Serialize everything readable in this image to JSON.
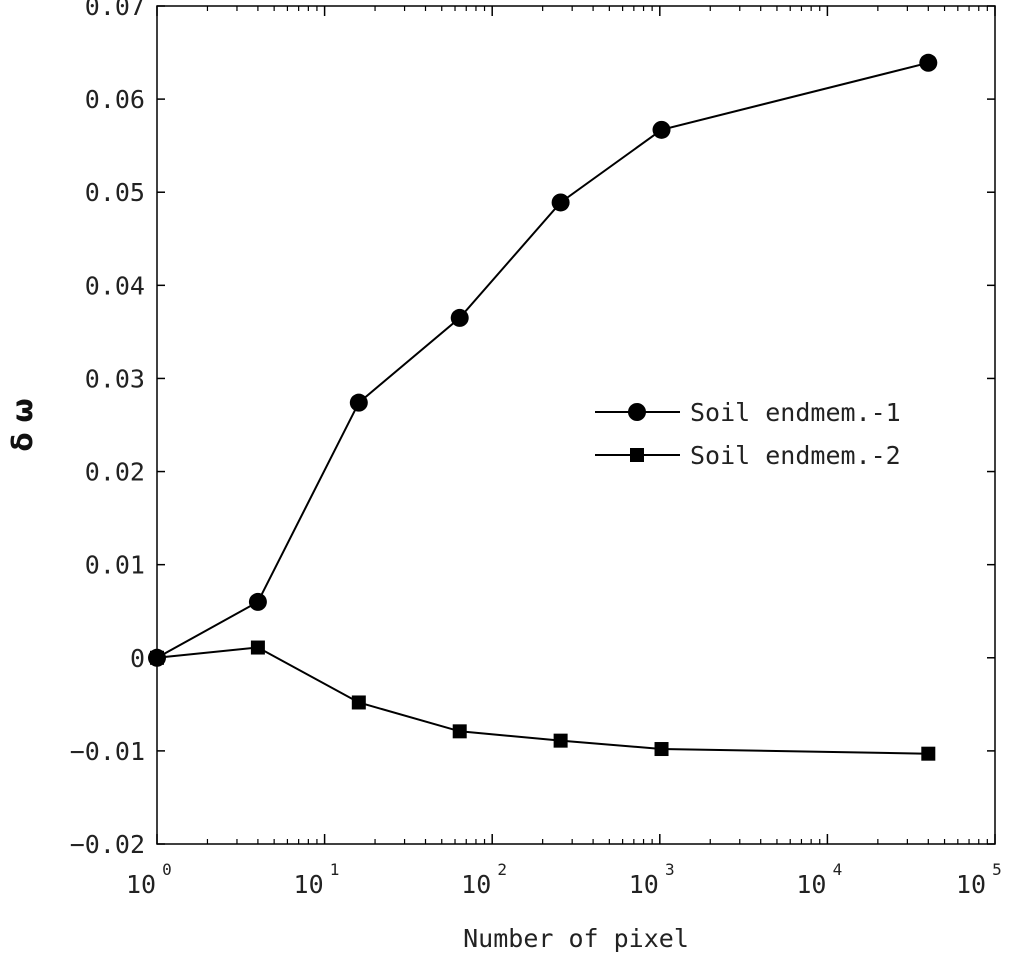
{
  "chart_data": {
    "type": "line",
    "title": "",
    "xlabel": "Number of pixel",
    "ylabel": "δ ω",
    "x_scale": "log",
    "xlim": [
      1,
      100000
    ],
    "ylim": [
      -0.02,
      0.07
    ],
    "x_ticks": [
      {
        "base": "10",
        "exp": "0"
      },
      {
        "base": "10",
        "exp": "1"
      },
      {
        "base": "10",
        "exp": "2"
      },
      {
        "base": "10",
        "exp": "3"
      },
      {
        "base": "10",
        "exp": "4"
      },
      {
        "base": "10",
        "exp": "5"
      }
    ],
    "y_ticks": [
      "0.07",
      "0.06",
      "0.05",
      "0.04",
      "0.03",
      "0.02",
      "0.01",
      "0",
      "−0.01",
      "−0.02"
    ],
    "y_tick_values": [
      0.07,
      0.06,
      0.05,
      0.04,
      0.03,
      0.02,
      0.01,
      0,
      -0.01,
      -0.02
    ],
    "x": [
      1,
      4,
      16,
      64,
      256,
      1024,
      40000
    ],
    "series": [
      {
        "name": "Soil endmem.-1",
        "marker": "circle",
        "values": [
          0.0,
          0.006,
          0.0274,
          0.0365,
          0.0489,
          0.0567,
          0.0639
        ]
      },
      {
        "name": "Soil endmem.-2",
        "marker": "square",
        "values": [
          0.0,
          0.0011,
          -0.0048,
          -0.0079,
          -0.0089,
          -0.0098,
          -0.0103
        ]
      }
    ],
    "legend_position": "right-middle",
    "grid": false,
    "color": "#000000"
  }
}
